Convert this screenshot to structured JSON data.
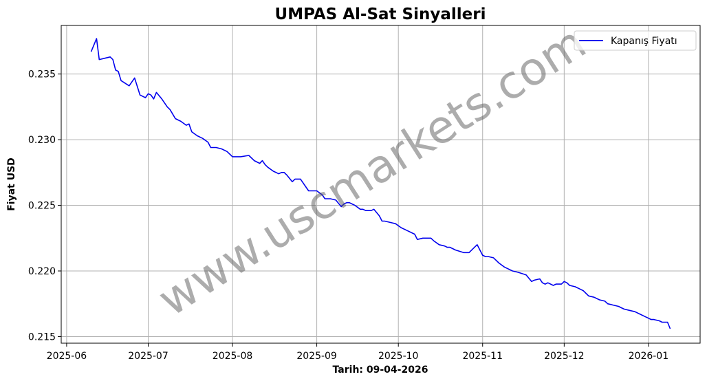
{
  "chart_data": {
    "type": "line",
    "title": "UMPAS Al-Sat Sinyalleri",
    "xlabel": "Tarih: 09-04-2026",
    "ylabel": "Fiyat USD",
    "watermark": "www.uscmarkets.com",
    "legend": {
      "position": "top-right",
      "entries": [
        "Kapanış Fiyatı"
      ]
    },
    "grid": true,
    "xlim": [
      "2025-05-30",
      "2026-01-20"
    ],
    "ylim": [
      0.2145,
      0.2387
    ],
    "x_ticks": [
      "2025-06-01",
      "2025-07-01",
      "2025-08-01",
      "2025-09-01",
      "2025-10-01",
      "2025-11-01",
      "2025-12-01",
      "2026-01-01"
    ],
    "x_tick_labels": [
      "2025-06",
      "2025-07",
      "2025-08",
      "2025-09",
      "2025-10",
      "2025-11",
      "2025-12",
      "2026-01"
    ],
    "y_ticks": [
      0.215,
      0.22,
      0.225,
      0.23,
      0.235
    ],
    "y_tick_labels": [
      "0.215",
      "0.220",
      "0.225",
      "0.230",
      "0.235"
    ],
    "colors": {
      "line": "#0000ee",
      "grid": "#b0b0b0",
      "axis": "#000000"
    },
    "series": [
      {
        "name": "Kapanış Fiyatı",
        "x": [
          "2025-06-10",
          "2025-06-12",
          "2025-06-13",
          "2025-06-15",
          "2025-06-17",
          "2025-06-18",
          "2025-06-19",
          "2025-06-20",
          "2025-06-21",
          "2025-06-24",
          "2025-06-26",
          "2025-06-28",
          "2025-06-30",
          "2025-07-01",
          "2025-07-02",
          "2025-07-03",
          "2025-07-04",
          "2025-07-06",
          "2025-07-08",
          "2025-07-09",
          "2025-07-11",
          "2025-07-13",
          "2025-07-15",
          "2025-07-16",
          "2025-07-17",
          "2025-07-19",
          "2025-07-21",
          "2025-07-23",
          "2025-07-24",
          "2025-07-26",
          "2025-07-28",
          "2025-07-30",
          "2025-08-01",
          "2025-08-04",
          "2025-08-07",
          "2025-08-09",
          "2025-08-11",
          "2025-08-12",
          "2025-08-13",
          "2025-08-14",
          "2025-08-16",
          "2025-08-18",
          "2025-08-19",
          "2025-08-20",
          "2025-08-21",
          "2025-08-23",
          "2025-08-24",
          "2025-08-26",
          "2025-08-27",
          "2025-08-29",
          "2025-09-01",
          "2025-09-03",
          "2025-09-04",
          "2025-09-06",
          "2025-09-08",
          "2025-09-10",
          "2025-09-11",
          "2025-09-12",
          "2025-09-13",
          "2025-09-15",
          "2025-09-17",
          "2025-09-18",
          "2025-09-19",
          "2025-09-21",
          "2025-09-22",
          "2025-09-24",
          "2025-09-25",
          "2025-09-26",
          "2025-09-28",
          "2025-09-30",
          "2025-10-02",
          "2025-10-04",
          "2025-10-06",
          "2025-10-07",
          "2025-10-08",
          "2025-10-10",
          "2025-10-13",
          "2025-10-14",
          "2025-10-16",
          "2025-10-18",
          "2025-10-19",
          "2025-10-20",
          "2025-10-22",
          "2025-10-25",
          "2025-10-27",
          "2025-10-29",
          "2025-10-30",
          "2025-11-01",
          "2025-11-02",
          "2025-11-03",
          "2025-11-05",
          "2025-11-07",
          "2025-11-09",
          "2025-11-12",
          "2025-11-14",
          "2025-11-17",
          "2025-11-19",
          "2025-11-20",
          "2025-11-22",
          "2025-11-23",
          "2025-11-24",
          "2025-11-25",
          "2025-11-27",
          "2025-11-28",
          "2025-11-30",
          "2025-12-01",
          "2025-12-02",
          "2025-12-03",
          "2025-12-05",
          "2025-12-07",
          "2025-12-08",
          "2025-12-09",
          "2025-12-10",
          "2025-12-12",
          "2025-12-14",
          "2025-12-16",
          "2025-12-17",
          "2025-12-19",
          "2025-12-21",
          "2025-12-22",
          "2025-12-23",
          "2025-12-25",
          "2025-12-27",
          "2025-12-29",
          "2025-12-31",
          "2026-01-01",
          "2026-01-02",
          "2026-01-03",
          "2026-01-05",
          "2026-01-06",
          "2026-01-08",
          "2026-01-09"
        ],
        "values": [
          0.2367,
          0.2377,
          0.2361,
          0.2362,
          0.2363,
          0.2361,
          0.2353,
          0.2352,
          0.2345,
          0.2341,
          0.2347,
          0.2334,
          0.2332,
          0.2335,
          0.2334,
          0.2331,
          0.2336,
          0.2331,
          0.2325,
          0.2323,
          0.2316,
          0.2314,
          0.2311,
          0.2312,
          0.2306,
          0.2303,
          0.2301,
          0.2298,
          0.2294,
          0.2294,
          0.2293,
          0.2291,
          0.2287,
          0.2287,
          0.2288,
          0.2284,
          0.2282,
          0.2284,
          0.2281,
          0.2279,
          0.2276,
          0.2274,
          0.2275,
          0.2275,
          0.2273,
          0.2268,
          0.227,
          0.227,
          0.2267,
          0.2261,
          0.2261,
          0.2258,
          0.2255,
          0.2255,
          0.2254,
          0.2249,
          0.2251,
          0.2252,
          0.2252,
          0.225,
          0.2247,
          0.2247,
          0.2246,
          0.2246,
          0.2247,
          0.2242,
          0.2238,
          0.2238,
          0.2237,
          0.2236,
          0.2233,
          0.2231,
          0.2229,
          0.2228,
          0.2224,
          0.2225,
          0.2225,
          0.2223,
          0.222,
          0.2219,
          0.2218,
          0.2218,
          0.2216,
          0.2214,
          0.2214,
          0.2218,
          0.222,
          0.2212,
          0.2211,
          0.2211,
          0.221,
          0.2206,
          0.2203,
          0.22,
          0.2199,
          0.2197,
          0.2192,
          0.2193,
          0.2194,
          0.2191,
          0.219,
          0.2191,
          0.2189,
          0.219,
          0.219,
          0.2192,
          0.2191,
          0.2189,
          0.2188,
          0.2186,
          0.2185,
          0.2183,
          0.2181,
          0.218,
          0.2178,
          0.2177,
          0.2175,
          0.2174,
          0.2173,
          0.2172,
          0.2171,
          0.217,
          0.2169,
          0.2167,
          0.2165,
          0.2164,
          0.2163,
          0.2163,
          0.2162,
          0.2161,
          0.2161,
          0.2156
        ]
      }
    ]
  }
}
